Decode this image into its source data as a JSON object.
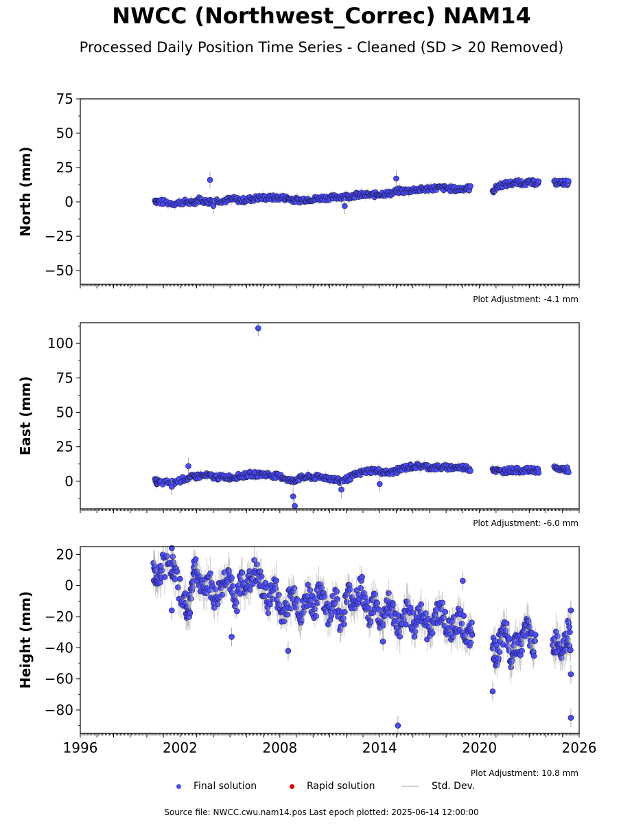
{
  "header": {
    "title": "NWCC (Northwest_Correc) NAM14",
    "subtitle": "Processed Daily Position Time Series - Cleaned (SD > 20 Removed)"
  },
  "footer": {
    "source_text": "Source file: NWCC.cwu.nam14.pos  Last epoch plotted: 2025-06-14 12:00:00"
  },
  "legend": {
    "items": [
      {
        "label": "Final solution",
        "color": "#4a4aff",
        "kind": "dot"
      },
      {
        "label": "Rapid solution",
        "color": "#e00000",
        "kind": "dot"
      },
      {
        "label": "Std. Dev.",
        "color": "#d3d3d3",
        "kind": "line"
      }
    ]
  },
  "chart_data": [
    {
      "type": "scatter",
      "ylabel": "North (mm)",
      "ylim": [
        -60,
        75
      ],
      "yticks": [
        -50,
        -25,
        0,
        25,
        50,
        75
      ],
      "xlim": [
        1996,
        2026
      ],
      "xticks": [
        1996,
        2002,
        2008,
        2014,
        2020,
        2026
      ],
      "adjustment": "Plot Adjustment: -4.1 mm",
      "series": [
        {
          "values": [
            [
              2000.5,
              1
            ],
            [
              2000.8,
              0
            ],
            [
              2001.6,
              -1
            ],
            [
              2002.3,
              0
            ],
            [
              2002.8,
              -1
            ],
            [
              2003.1,
              2
            ],
            [
              2003.6,
              0
            ],
            [
              2004.1,
              1
            ],
            [
              2004.7,
              1
            ],
            [
              2005.2,
              2
            ],
            [
              2005.7,
              1
            ],
            [
              2006.2,
              2
            ],
            [
              2006.7,
              3
            ],
            [
              2007.2,
              3
            ],
            [
              2007.7,
              3
            ],
            [
              2008.2,
              3
            ],
            [
              2008.7,
              2
            ],
            [
              2009.1,
              1
            ],
            [
              2009.6,
              2
            ],
            [
              2010.1,
              2
            ],
            [
              2010.6,
              3
            ],
            [
              2011.1,
              3
            ],
            [
              2011.6,
              4
            ],
            [
              2012.1,
              4
            ],
            [
              2012.6,
              5
            ],
            [
              2013.1,
              5
            ],
            [
              2013.6,
              5
            ],
            [
              2014.1,
              6
            ],
            [
              2014.6,
              6
            ],
            [
              2015.1,
              8
            ],
            [
              2015.6,
              8
            ],
            [
              2016.1,
              9
            ],
            [
              2016.6,
              9
            ],
            [
              2017.1,
              10
            ],
            [
              2017.6,
              10
            ],
            [
              2018.1,
              10
            ],
            [
              2018.6,
              9
            ],
            [
              2019.1,
              10
            ],
            [
              2019.5,
              10
            ],
            [
              2020.8,
              8
            ],
            [
              2021.2,
              12
            ],
            [
              2021.7,
              13
            ],
            [
              2022.2,
              14
            ],
            [
              2022.7,
              14
            ],
            [
              2023.2,
              14
            ],
            [
              2023.6,
              14
            ],
            [
              2024.5,
              14
            ],
            [
              2025.0,
              14
            ],
            [
              2025.4,
              14
            ]
          ]
        },
        {
          "values": [
            [
              2003.8,
              16
            ],
            [
              2015.0,
              17
            ],
            [
              2011.9,
              -3
            ],
            [
              2004.0,
              -3
            ]
          ]
        }
      ]
    },
    {
      "type": "scatter",
      "ylabel": "East (mm)",
      "ylim": [
        -20,
        115
      ],
      "yticks": [
        0,
        25,
        50,
        75,
        100
      ],
      "xlim": [
        1996,
        2026
      ],
      "xticks": [
        1996,
        2002,
        2008,
        2014,
        2020,
        2026
      ],
      "adjustment": "Plot Adjustment: -6.0 mm",
      "series": [
        {
          "values": [
            [
              2000.5,
              0
            ],
            [
              2000.8,
              -1
            ],
            [
              2001.6,
              -1
            ],
            [
              2002.3,
              2
            ],
            [
              2002.8,
              3
            ],
            [
              2003.2,
              4
            ],
            [
              2003.7,
              4
            ],
            [
              2004.2,
              3
            ],
            [
              2004.7,
              3
            ],
            [
              2005.2,
              3
            ],
            [
              2005.7,
              4
            ],
            [
              2006.2,
              5
            ],
            [
              2006.7,
              5
            ],
            [
              2007.2,
              5
            ],
            [
              2007.7,
              4
            ],
            [
              2008.2,
              3
            ],
            [
              2008.7,
              0
            ],
            [
              2009.1,
              2
            ],
            [
              2009.6,
              3
            ],
            [
              2010.1,
              3
            ],
            [
              2010.6,
              3
            ],
            [
              2011.1,
              2
            ],
            [
              2011.6,
              0
            ],
            [
              2012.1,
              2
            ],
            [
              2012.6,
              5
            ],
            [
              2013.1,
              7
            ],
            [
              2013.6,
              8
            ],
            [
              2014.1,
              7
            ],
            [
              2014.6,
              6
            ],
            [
              2015.1,
              8
            ],
            [
              2015.6,
              10
            ],
            [
              2016.1,
              11
            ],
            [
              2016.6,
              11
            ],
            [
              2017.1,
              10
            ],
            [
              2017.6,
              10
            ],
            [
              2018.1,
              10
            ],
            [
              2018.6,
              10
            ],
            [
              2019.1,
              10
            ],
            [
              2019.5,
              9
            ],
            [
              2020.8,
              9
            ],
            [
              2021.2,
              7
            ],
            [
              2021.7,
              8
            ],
            [
              2022.2,
              8
            ],
            [
              2022.7,
              8
            ],
            [
              2023.2,
              8
            ],
            [
              2023.6,
              8
            ],
            [
              2024.5,
              9
            ],
            [
              2025.0,
              9
            ],
            [
              2025.4,
              8
            ]
          ]
        },
        {
          "values": [
            [
              2006.7,
              111
            ],
            [
              2008.8,
              -11
            ],
            [
              2008.9,
              -18
            ],
            [
              2002.5,
              11
            ],
            [
              2001.5,
              -4
            ],
            [
              2011.7,
              -6
            ],
            [
              2014.0,
              -2
            ]
          ]
        }
      ]
    },
    {
      "type": "scatter",
      "ylabel": "Height (mm)",
      "ylim": [
        -95,
        25
      ],
      "yticks": [
        -80,
        -60,
        -40,
        -20,
        0,
        20
      ],
      "xlim": [
        1996,
        2026
      ],
      "xticks": [
        1996,
        2002,
        2008,
        2014,
        2020,
        2026
      ],
      "xticklabels": [
        "1996",
        "2002",
        "2008",
        "2014",
        "2020",
        "2026"
      ],
      "adjustment": "Plot Adjustment: 10.8 mm",
      "series": [
        {
          "values": [
            [
              2000.4,
              10
            ],
            [
              2000.6,
              0
            ],
            [
              2000.9,
              12
            ],
            [
              2001.5,
              15
            ],
            [
              2001.7,
              5
            ],
            [
              2002.3,
              -10
            ],
            [
              2002.5,
              -20
            ],
            [
              2002.7,
              0
            ],
            [
              2002.9,
              15
            ],
            [
              2003.3,
              -5
            ],
            [
              2003.7,
              5
            ],
            [
              2004.1,
              -10
            ],
            [
              2004.5,
              0
            ],
            [
              2004.9,
              10
            ],
            [
              2005.3,
              -15
            ],
            [
              2005.7,
              5
            ],
            [
              2006.1,
              0
            ],
            [
              2006.5,
              10
            ],
            [
              2006.9,
              0
            ],
            [
              2007.3,
              -10
            ],
            [
              2007.7,
              0
            ],
            [
              2008.1,
              -20
            ],
            [
              2008.5,
              -10
            ],
            [
              2008.9,
              -5
            ],
            [
              2009.3,
              -20
            ],
            [
              2009.7,
              -5
            ],
            [
              2010.1,
              -15
            ],
            [
              2010.5,
              0
            ],
            [
              2010.9,
              -20
            ],
            [
              2011.3,
              -5
            ],
            [
              2011.7,
              -25
            ],
            [
              2012.1,
              -5
            ],
            [
              2012.5,
              -10
            ],
            [
              2012.9,
              0
            ],
            [
              2013.3,
              -20
            ],
            [
              2013.7,
              -10
            ],
            [
              2014.1,
              -25
            ],
            [
              2014.5,
              -10
            ],
            [
              2014.9,
              -20
            ],
            [
              2015.3,
              -30
            ],
            [
              2015.7,
              -15
            ],
            [
              2016.1,
              -25
            ],
            [
              2016.5,
              -15
            ],
            [
              2016.9,
              -30
            ],
            [
              2017.3,
              -20
            ],
            [
              2017.7,
              -15
            ],
            [
              2018.1,
              -30
            ],
            [
              2018.5,
              -25
            ],
            [
              2018.9,
              -20
            ],
            [
              2019.3,
              -35
            ],
            [
              2019.6,
              -30
            ],
            [
              2020.8,
              -40
            ],
            [
              2021.0,
              -45
            ],
            [
              2021.3,
              -35
            ],
            [
              2021.6,
              -30
            ],
            [
              2021.9,
              -45
            ],
            [
              2022.2,
              -35
            ],
            [
              2022.5,
              -40
            ],
            [
              2022.8,
              -25
            ],
            [
              2023.1,
              -35
            ],
            [
              2023.4,
              -40
            ],
            [
              2024.4,
              -40
            ],
            [
              2024.7,
              -35
            ],
            [
              2025.0,
              -40
            ],
            [
              2025.3,
              -30
            ],
            [
              2025.5,
              -35
            ]
          ]
        },
        {
          "values": [
            [
              2001.5,
              -16
            ],
            [
              2001.5,
              24
            ],
            [
              2005.1,
              -33
            ],
            [
              2008.5,
              -42
            ],
            [
              2014.2,
              -36
            ],
            [
              2015.1,
              -90
            ],
            [
              2020.8,
              -68
            ],
            [
              2025.5,
              -85
            ],
            [
              2025.5,
              -57
            ],
            [
              2025.5,
              -16
            ],
            [
              2019.0,
              3
            ]
          ]
        }
      ]
    }
  ]
}
